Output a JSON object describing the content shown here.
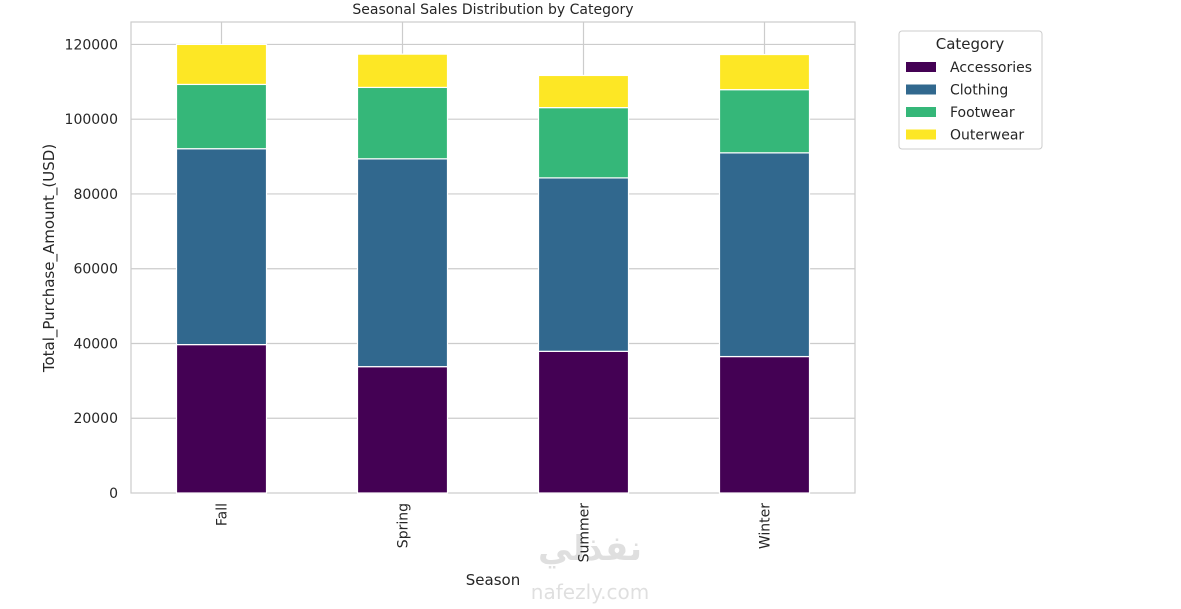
{
  "chart_data": {
    "type": "bar",
    "stacked": true,
    "title": "Seasonal Sales Distribution by Category",
    "xlabel": "Season",
    "ylabel": "Total_Purchase_Amount_(USD)",
    "categories": [
      "Fall",
      "Spring",
      "Summer",
      "Winter"
    ],
    "ylim": [
      0,
      126000
    ],
    "yticks": [
      0,
      20000,
      40000,
      60000,
      80000,
      100000,
      120000
    ],
    "grid": true,
    "legend": {
      "title": "Category",
      "placement": "outside-top-right"
    },
    "series": [
      {
        "name": "Accessories",
        "color": "#440154",
        "values": [
          39700,
          33800,
          37900,
          36500
        ]
      },
      {
        "name": "Clothing",
        "color": "#31688e",
        "values": [
          52400,
          55600,
          46400,
          54500
        ]
      },
      {
        "name": "Footwear",
        "color": "#35b779",
        "values": [
          17200,
          19100,
          18800,
          16900
        ]
      },
      {
        "name": "Outerwear",
        "color": "#fde725",
        "values": [
          10700,
          8900,
          8600,
          9400
        ]
      }
    ]
  },
  "watermark": {
    "arabic": "نفذلي",
    "latin": "nafezly.com"
  }
}
